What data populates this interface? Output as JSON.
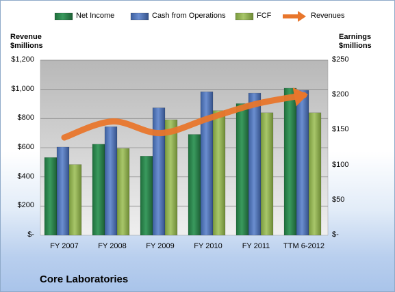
{
  "company": "Core Laboratories",
  "colors": {
    "net_income": "#2e8b57",
    "cash_from_operations": "#5b7fc2",
    "fcf": "#9bbb59",
    "revenues": "#e8762c",
    "plot_bg": "#d0d0d0"
  },
  "chart_data": {
    "type": "bar",
    "categories": [
      "FY 2007",
      "FY 2008",
      "FY 2009",
      "FY 2010",
      "FY 2011",
      "TTM 6-2012"
    ],
    "series": [
      {
        "name": "Net Income",
        "axis": "right",
        "values": [
          111,
          130,
          113,
          144,
          188,
          210
        ]
      },
      {
        "name": "Cash from Operations",
        "axis": "right",
        "values": [
          126,
          155,
          182,
          205,
          203,
          207
        ]
      },
      {
        "name": "FCF",
        "axis": "right",
        "values": [
          101,
          124,
          165,
          178,
          175,
          175
        ]
      },
      {
        "name": "Revenues",
        "type": "line",
        "axis": "left",
        "values": [
          670,
          780,
          700,
          800,
          900,
          960
        ]
      }
    ],
    "left_axis": {
      "label_line1": "Revenue",
      "label_line2": "$millions",
      "ylim": [
        0,
        1200
      ],
      "ticks": [
        "$-",
        "$200",
        "$400",
        "$600",
        "$800",
        "$1,000",
        "$1,200"
      ]
    },
    "right_axis": {
      "label_line1": "Earnings",
      "label_line2": "$millions",
      "ylim": [
        0,
        250
      ],
      "ticks": [
        "$-",
        "$50",
        "$100",
        "$150",
        "$200",
        "$250"
      ]
    },
    "legend_position": "top",
    "grid": true
  }
}
